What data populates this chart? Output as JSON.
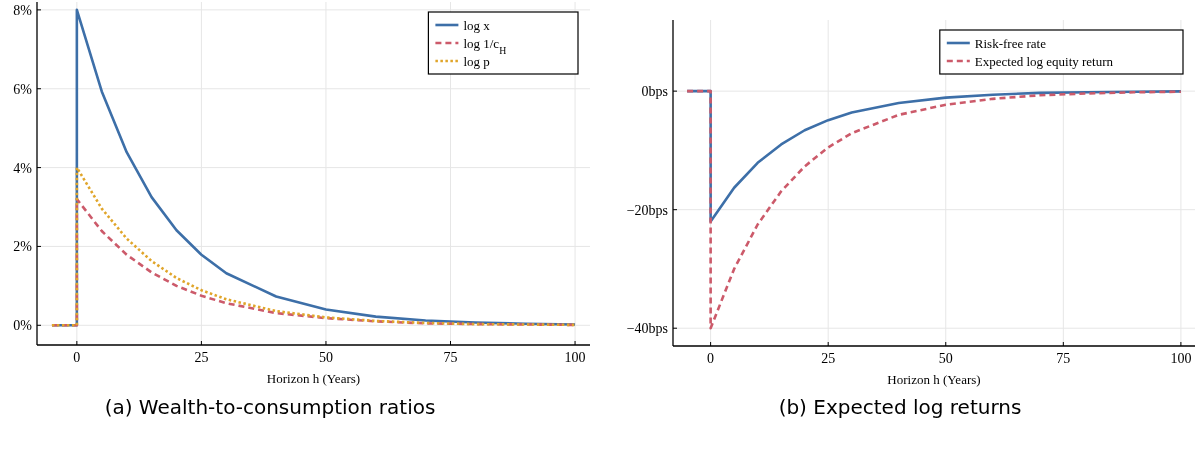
{
  "chart_data": [
    {
      "type": "line",
      "title": "(a) Wealth-to-consumption ratios",
      "xlabel": "Horizon h (Years)",
      "xlim": [
        -8,
        103
      ],
      "xticks": [
        0,
        25,
        50,
        75,
        100
      ],
      "ylim": [
        -0.5,
        8.2
      ],
      "yticks": [
        {
          "value": 0,
          "label": "0%"
        },
        {
          "value": 2,
          "label": "2%"
        },
        {
          "value": 4,
          "label": "4%"
        },
        {
          "value": 6,
          "label": "6%"
        },
        {
          "value": 8,
          "label": "8%"
        }
      ],
      "grid": true,
      "legend": "top right",
      "series": [
        {
          "name": "log x",
          "color": "#3d6fa8",
          "line_style": "solid",
          "x": [
            -5,
            0,
            0,
            5,
            10,
            15,
            20,
            25,
            30,
            40,
            50,
            60,
            70,
            80,
            90,
            100
          ],
          "values": [
            0,
            0,
            8,
            5.93,
            4.39,
            3.25,
            2.41,
            1.79,
            1.32,
            0.73,
            0.4,
            0.22,
            0.12,
            0.07,
            0.04,
            0.02
          ]
        },
        {
          "name": "log 1/c$_{H}$",
          "color": "#cc5a6a",
          "line_style": "dashed",
          "x": [
            -5,
            0,
            0,
            5,
            10,
            15,
            20,
            25,
            30,
            40,
            50,
            60,
            70,
            80,
            90,
            100
          ],
          "values": [
            0,
            0,
            3.2,
            2.39,
            1.79,
            1.34,
            1.0,
            0.75,
            0.56,
            0.31,
            0.18,
            0.1,
            0.05,
            0.03,
            0.02,
            0.01
          ]
        },
        {
          "name": "log p",
          "color": "#e0a52a",
          "line_style": "dotted",
          "x": [
            -5,
            0,
            0,
            5,
            10,
            15,
            20,
            25,
            30,
            40,
            50,
            60,
            70,
            80,
            90,
            100
          ],
          "values": [
            0,
            0,
            4.0,
            2.96,
            2.2,
            1.63,
            1.2,
            0.89,
            0.66,
            0.36,
            0.2,
            0.11,
            0.06,
            0.03,
            0.02,
            0.01
          ]
        }
      ]
    },
    {
      "type": "line",
      "title": "(b) Expected log returns",
      "xlabel": "Horizon h (Years)",
      "xlim": [
        -8,
        103
      ],
      "xticks": [
        0,
        25,
        50,
        75,
        100
      ],
      "ylim": [
        -43,
        12
      ],
      "yticks": [
        {
          "value": -40,
          "label": "−40bps"
        },
        {
          "value": -20,
          "label": "−20bps"
        },
        {
          "value": 0,
          "label": "0bps"
        }
      ],
      "grid": true,
      "legend": "top right",
      "series": [
        {
          "name": "Risk-free rate",
          "color": "#3d6fa8",
          "line_style": "solid",
          "x": [
            -5,
            0,
            0,
            5,
            10,
            15,
            20,
            25,
            30,
            40,
            50,
            60,
            70,
            80,
            90,
            100
          ],
          "values": [
            0,
            0,
            -22,
            -16.3,
            -12.1,
            -9.0,
            -6.6,
            -4.9,
            -3.6,
            -2.0,
            -1.1,
            -0.6,
            -0.3,
            -0.2,
            -0.1,
            -0.05
          ]
        },
        {
          "name": "Expected log equity return",
          "color": "#cc5a6a",
          "line_style": "dashed",
          "x": [
            -5,
            0,
            0,
            5,
            10,
            15,
            20,
            25,
            30,
            40,
            50,
            60,
            70,
            80,
            90,
            100
          ],
          "values": [
            0,
            0,
            -40,
            -30,
            -22.5,
            -16.9,
            -12.7,
            -9.5,
            -7.1,
            -4.0,
            -2.3,
            -1.3,
            -0.7,
            -0.4,
            -0.2,
            -0.1
          ]
        }
      ]
    }
  ]
}
